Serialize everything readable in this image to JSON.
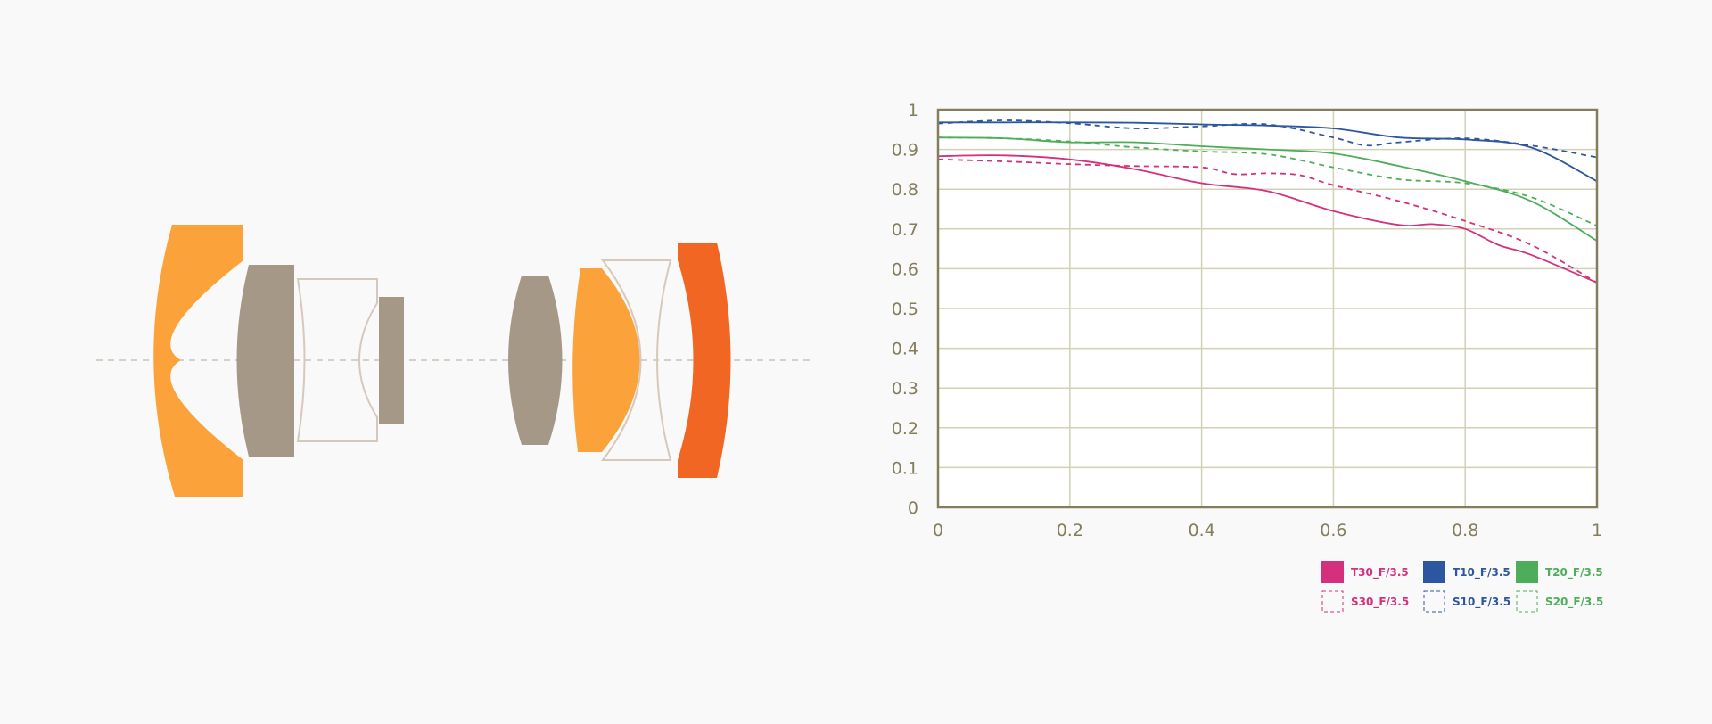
{
  "diagram": {
    "colors": {
      "orange": "#fba33a",
      "dark_orange": "#f06622",
      "taupe": "#a59887",
      "outline": "#d6c9bb",
      "axis_line": "#c0b8ac"
    }
  },
  "chart_data": {
    "type": "line",
    "xlim": [
      0,
      1
    ],
    "ylim": [
      0,
      1
    ],
    "x_ticks": [
      "0",
      "0.2",
      "0.4",
      "0.6",
      "0.8",
      "1"
    ],
    "y_ticks": [
      "0",
      "0.1",
      "0.2",
      "0.3",
      "0.4",
      "0.5",
      "0.6",
      "0.7",
      "0.8",
      "0.9",
      "1"
    ],
    "grid": true,
    "legend_position": "bottom-right",
    "axis_color": "#837d5b",
    "grid_color": "#d3d1b5",
    "series": [
      {
        "name": "T30_F/3.5",
        "color": "#d5307d",
        "dash": false,
        "x": [
          0,
          0.1,
          0.2,
          0.3,
          0.4,
          0.5,
          0.6,
          0.7,
          0.75,
          0.8,
          0.85,
          0.9,
          1
        ],
        "y": [
          0.883,
          0.885,
          0.875,
          0.85,
          0.815,
          0.795,
          0.745,
          0.71,
          0.712,
          0.7,
          0.66,
          0.635,
          0.565
        ]
      },
      {
        "name": "T10_F/3.5",
        "color": "#2d56a0",
        "dash": false,
        "x": [
          0,
          0.1,
          0.2,
          0.3,
          0.4,
          0.5,
          0.6,
          0.7,
          0.8,
          0.9,
          1
        ],
        "y": [
          0.968,
          0.968,
          0.968,
          0.967,
          0.963,
          0.96,
          0.953,
          0.93,
          0.925,
          0.905,
          0.82
        ]
      },
      {
        "name": "T20_F/3.5",
        "color": "#4ead5b",
        "dash": false,
        "x": [
          0,
          0.1,
          0.2,
          0.3,
          0.4,
          0.5,
          0.6,
          0.7,
          0.8,
          0.9,
          1
        ],
        "y": [
          0.93,
          0.928,
          0.918,
          0.918,
          0.908,
          0.9,
          0.89,
          0.858,
          0.82,
          0.77,
          0.67
        ]
      },
      {
        "name": "S30_F/3.5",
        "color": "#d5307d",
        "dash": true,
        "x": [
          0,
          0.1,
          0.2,
          0.3,
          0.4,
          0.45,
          0.5,
          0.55,
          0.6,
          0.7,
          0.8,
          0.9,
          1
        ],
        "y": [
          0.875,
          0.87,
          0.863,
          0.858,
          0.855,
          0.838,
          0.84,
          0.835,
          0.81,
          0.77,
          0.72,
          0.66,
          0.565
        ]
      },
      {
        "name": "S10_F/3.5",
        "color": "#2d56a0",
        "dash": true,
        "x": [
          0,
          0.1,
          0.2,
          0.3,
          0.4,
          0.5,
          0.6,
          0.65,
          0.7,
          0.8,
          0.9,
          1
        ],
        "y": [
          0.965,
          0.973,
          0.966,
          0.953,
          0.958,
          0.963,
          0.93,
          0.91,
          0.918,
          0.928,
          0.91,
          0.88
        ]
      },
      {
        "name": "S20_F/3.5",
        "color": "#4ead5b",
        "dash": true,
        "x": [
          0,
          0.1,
          0.2,
          0.3,
          0.4,
          0.5,
          0.6,
          0.7,
          0.8,
          0.9,
          1
        ],
        "y": [
          0.93,
          0.928,
          0.92,
          0.905,
          0.895,
          0.888,
          0.855,
          0.825,
          0.815,
          0.78,
          0.708
        ]
      }
    ]
  }
}
